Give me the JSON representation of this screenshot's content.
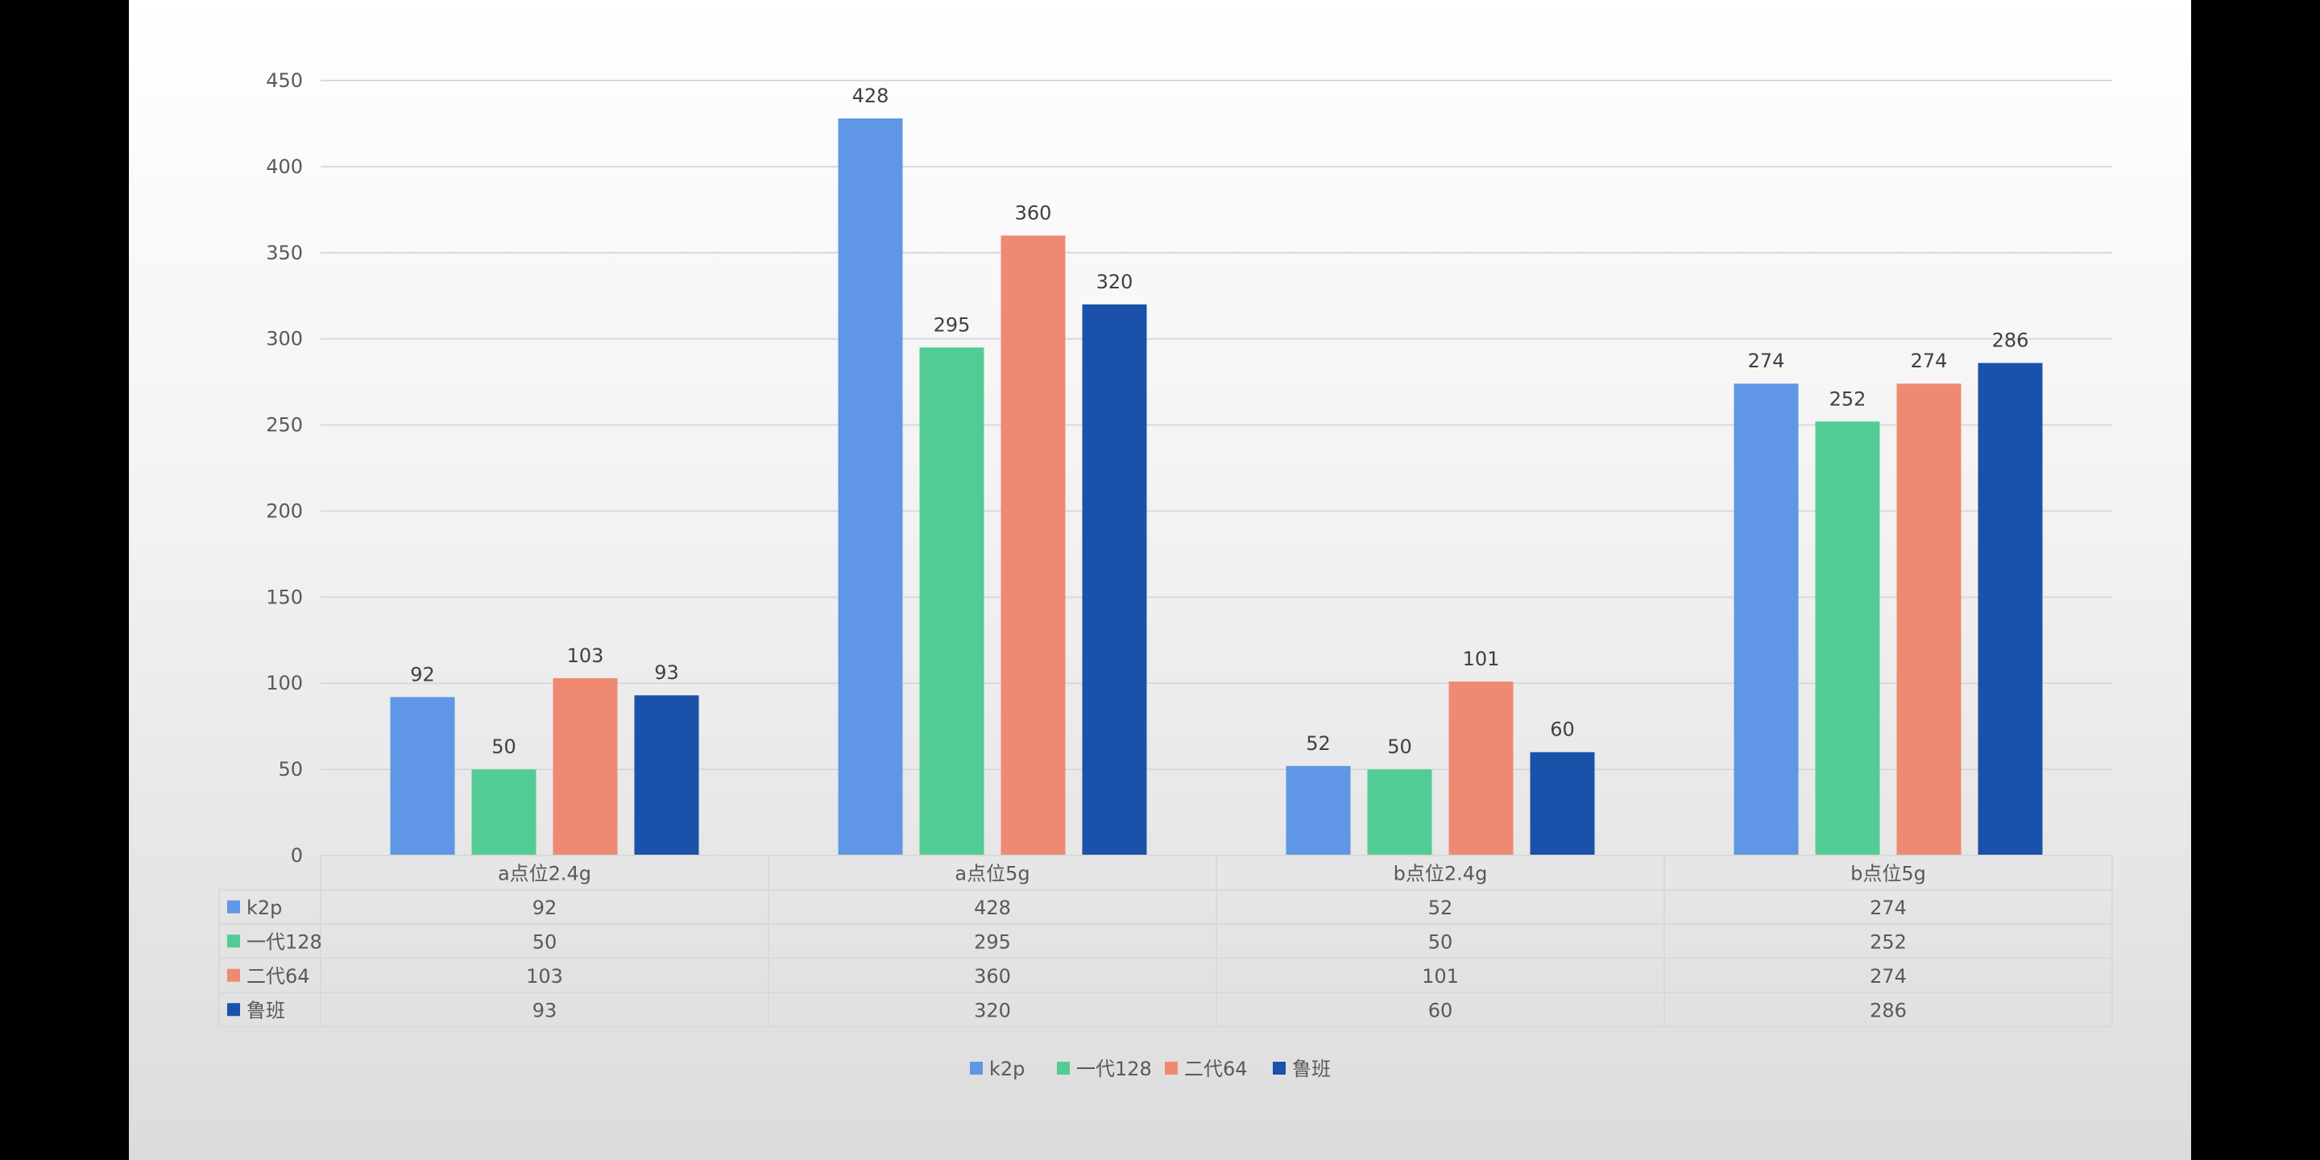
{
  "chart_data": {
    "type": "bar",
    "categories": [
      "a点位2.4g",
      "a点位5g",
      "b点位2.4g",
      "b点位5g"
    ],
    "series": [
      {
        "name": "k2p",
        "values": [
          92,
          428,
          52,
          274
        ],
        "color": "#6096e6"
      },
      {
        "name": "一代128",
        "values": [
          50,
          295,
          50,
          252
        ],
        "color": "#52cc94"
      },
      {
        "name": "二代64",
        "values": [
          103,
          360,
          101,
          274
        ],
        "color": "#ef8a72"
      },
      {
        "name": "鲁班",
        "values": [
          93,
          320,
          60,
          286
        ],
        "color": "#1a51ab"
      }
    ],
    "ylim": [
      0,
      450
    ],
    "yticks": [
      0,
      50,
      100,
      150,
      200,
      250,
      300,
      350,
      400,
      450
    ],
    "grid": true,
    "data_table": true,
    "legend_position": "bottom-center"
  }
}
